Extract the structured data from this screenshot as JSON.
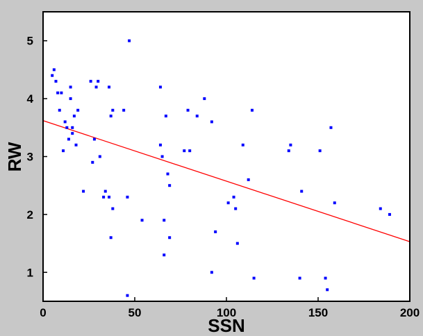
{
  "chart_data": {
    "type": "scatter",
    "xlabel": "SSN",
    "ylabel": "RW",
    "xlim": [
      0,
      200
    ],
    "ylim": [
      0.5,
      5.5
    ],
    "x_ticks": [
      "0",
      "50",
      "100",
      "150",
      "200"
    ],
    "y_ticks": [
      "1",
      "2",
      "3",
      "4",
      "5"
    ],
    "grid": false,
    "colors": {
      "points": "#0000ff",
      "fit_line": "#ff0000",
      "frame": "#000000",
      "plot_bg": "#ffffff",
      "page_bg": "#c8c8c8"
    },
    "series": [
      {
        "points": [
          [
            5,
            4.4
          ],
          [
            6,
            4.5
          ],
          [
            7,
            4.3
          ],
          [
            8,
            4.1
          ],
          [
            9,
            3.8
          ],
          [
            10,
            4.1
          ],
          [
            11,
            3.1
          ],
          [
            12,
            3.6
          ],
          [
            13,
            3.5
          ],
          [
            14,
            3.3
          ],
          [
            15,
            4.2
          ],
          [
            15,
            4.0
          ],
          [
            16,
            3.5
          ],
          [
            16,
            3.4
          ],
          [
            17,
            3.7
          ],
          [
            18,
            3.2
          ],
          [
            19,
            3.8
          ],
          [
            22,
            2.4
          ],
          [
            26,
            4.3
          ],
          [
            27,
            2.9
          ],
          [
            28,
            3.3
          ],
          [
            29,
            4.2
          ],
          [
            30,
            4.3
          ],
          [
            31,
            3.0
          ],
          [
            33,
            2.3
          ],
          [
            34,
            2.4
          ],
          [
            36,
            2.3
          ],
          [
            36,
            4.2
          ],
          [
            37,
            1.6
          ],
          [
            37,
            3.7
          ],
          [
            38,
            3.8
          ],
          [
            38,
            2.1
          ],
          [
            44,
            3.8
          ],
          [
            46,
            2.3
          ],
          [
            46,
            0.6
          ],
          [
            47,
            5.0
          ],
          [
            54,
            1.9
          ],
          [
            64,
            4.2
          ],
          [
            64,
            3.2
          ],
          [
            65,
            3.0
          ],
          [
            66,
            1.9
          ],
          [
            66,
            1.3
          ],
          [
            67,
            3.7
          ],
          [
            68,
            2.7
          ],
          [
            69,
            2.5
          ],
          [
            69,
            1.6
          ],
          [
            77,
            3.1
          ],
          [
            79,
            3.8
          ],
          [
            80,
            3.1
          ],
          [
            84,
            3.7
          ],
          [
            88,
            4.0
          ],
          [
            92,
            3.6
          ],
          [
            92,
            1.0
          ],
          [
            94,
            1.7
          ],
          [
            101,
            2.2
          ],
          [
            104,
            2.3
          ],
          [
            105,
            2.1
          ],
          [
            106,
            1.5
          ],
          [
            109,
            3.2
          ],
          [
            112,
            2.6
          ],
          [
            114,
            3.8
          ],
          [
            115,
            0.9
          ],
          [
            134,
            3.1
          ],
          [
            135,
            3.2
          ],
          [
            140,
            0.9
          ],
          [
            141,
            2.4
          ],
          [
            151,
            3.1
          ],
          [
            154,
            0.9
          ],
          [
            155,
            0.7
          ],
          [
            157,
            3.5
          ],
          [
            159,
            2.2
          ],
          [
            184,
            2.1
          ],
          [
            189,
            2.0
          ]
        ]
      }
    ],
    "fit_line": {
      "x": [
        0,
        200
      ],
      "y": [
        3.62,
        1.53
      ]
    }
  }
}
